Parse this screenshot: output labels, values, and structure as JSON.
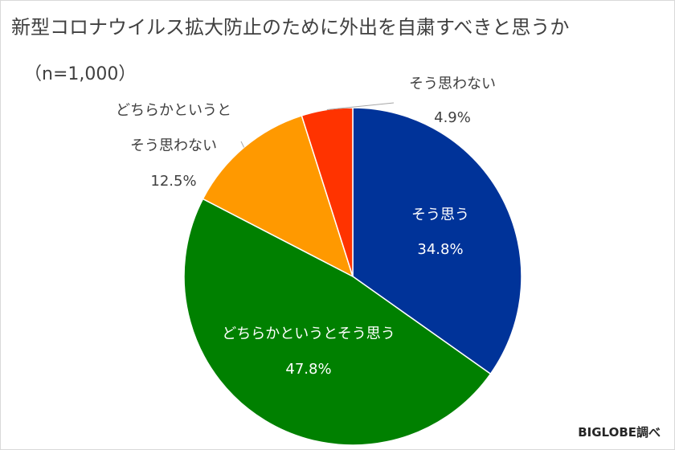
{
  "chart_data": {
    "type": "pie",
    "title": "新型コロナウイルス拡大防止のために外出を自粛すべきと思うか",
    "subtitle": "（n=1,000）",
    "slices": [
      {
        "label": "そう思う",
        "value": 34.8,
        "value_text": "34.8%",
        "color": "#003399"
      },
      {
        "label": "どちらかというとそう思う",
        "value": 47.8,
        "value_text": "47.8%",
        "color": "#008000"
      },
      {
        "label": "どちらかというとそう思わない",
        "label_lines": [
          "どちらかというと",
          "そう思わない"
        ],
        "value": 12.5,
        "value_text": "12.5%",
        "color": "#ff9900"
      },
      {
        "label": "そう思わない",
        "value": 4.9,
        "value_text": "4.9%",
        "color": "#ff3300"
      }
    ],
    "start_angle": "12 o'clock",
    "direction": "clockwise",
    "legend": "none",
    "data_labels": "category name and value"
  },
  "source": "BIGLOBE調べ"
}
